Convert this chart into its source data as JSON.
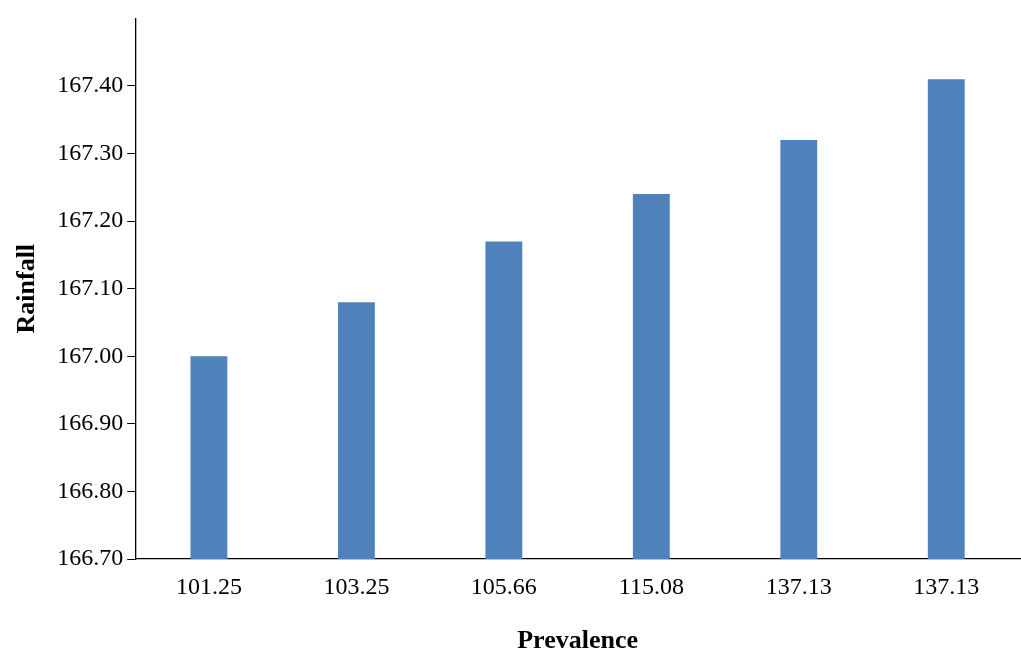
{
  "chart_data": {
    "type": "bar",
    "xlabel": "Prevalence",
    "ylabel": "Rainfall",
    "categories": [
      "101.25",
      "103.25",
      "105.66",
      "115.08",
      "137.13",
      "137.13"
    ],
    "values": [
      167.0,
      167.08,
      167.17,
      167.24,
      167.32,
      167.41
    ],
    "color": "#4f81bd",
    "ylim": [
      166.7,
      167.5
    ],
    "yticks": [
      {
        "value": 166.7,
        "label": "166.70"
      },
      {
        "value": 166.8,
        "label": "166.80"
      },
      {
        "value": 166.9,
        "label": "166.90"
      },
      {
        "value": 167.0,
        "label": "167.00"
      },
      {
        "value": 167.1,
        "label": "167.10"
      },
      {
        "value": 167.2,
        "label": "167.20"
      },
      {
        "value": 167.3,
        "label": "167.30"
      },
      {
        "value": 167.4,
        "label": "167.40"
      }
    ],
    "grid": false,
    "legend": false
  }
}
